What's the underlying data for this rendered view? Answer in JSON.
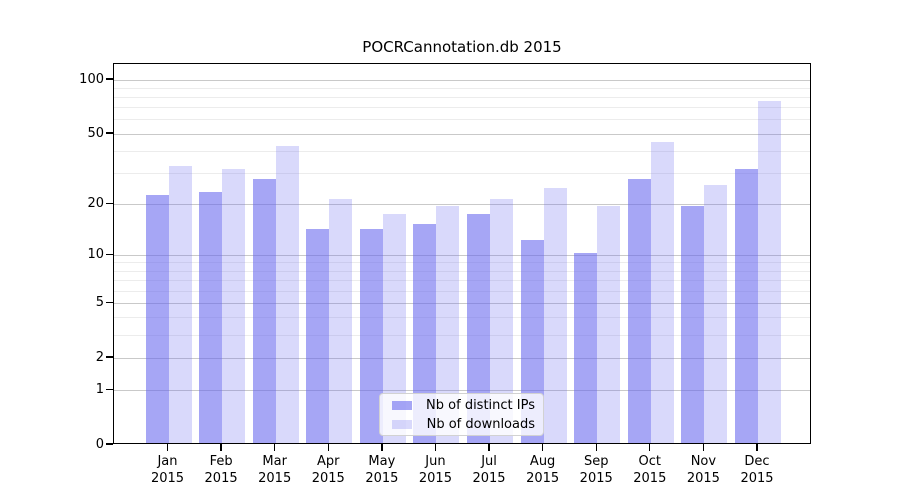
{
  "title": "POCRCannotation.db 2015",
  "legend": {
    "items": [
      {
        "label": "Nb of distinct IPs",
        "series_key": "distinct_ips"
      },
      {
        "label": "Nb of downloads",
        "series_key": "downloads"
      }
    ],
    "position": "lower center"
  },
  "colors": {
    "distinct_ips": "rgba(102,102,238,0.58)",
    "downloads": "rgba(102,102,238,0.25)",
    "major_grid": "#c9c9c9",
    "minor_grid": "#ececec",
    "axis": "#000000"
  },
  "chart_data": {
    "type": "bar",
    "title": "POCRCannotation.db 2015",
    "categories": [
      {
        "month": "Jan",
        "year": "2015"
      },
      {
        "month": "Feb",
        "year": "2015"
      },
      {
        "month": "Mar",
        "year": "2015"
      },
      {
        "month": "Apr",
        "year": "2015"
      },
      {
        "month": "May",
        "year": "2015"
      },
      {
        "month": "Jun",
        "year": "2015"
      },
      {
        "month": "Jul",
        "year": "2015"
      },
      {
        "month": "Aug",
        "year": "2015"
      },
      {
        "month": "Sep",
        "year": "2015"
      },
      {
        "month": "Oct",
        "year": "2015"
      },
      {
        "month": "Nov",
        "year": "2015"
      },
      {
        "month": "Dec",
        "year": "2015"
      }
    ],
    "series": [
      {
        "name": "Nb of distinct IPs",
        "values": [
          22,
          23,
          27,
          14,
          14,
          15,
          17,
          12,
          10,
          27,
          19,
          31
        ]
      },
      {
        "name": "Nb of downloads",
        "values": [
          32,
          31,
          42,
          21,
          17,
          19,
          21,
          24,
          19,
          44,
          25,
          75
        ]
      }
    ],
    "yscale": "log10(1+x)",
    "yticks": [
      0,
      1,
      2,
      5,
      10,
      20,
      50,
      100
    ],
    "minor_yticks": [
      3,
      4,
      6,
      7,
      8,
      9,
      30,
      40,
      60,
      70,
      80,
      90
    ],
    "ylim": [
      0,
      122
    ],
    "xlabel": "",
    "ylabel": "",
    "grid": "horizontal",
    "legend_position": "lower center"
  }
}
